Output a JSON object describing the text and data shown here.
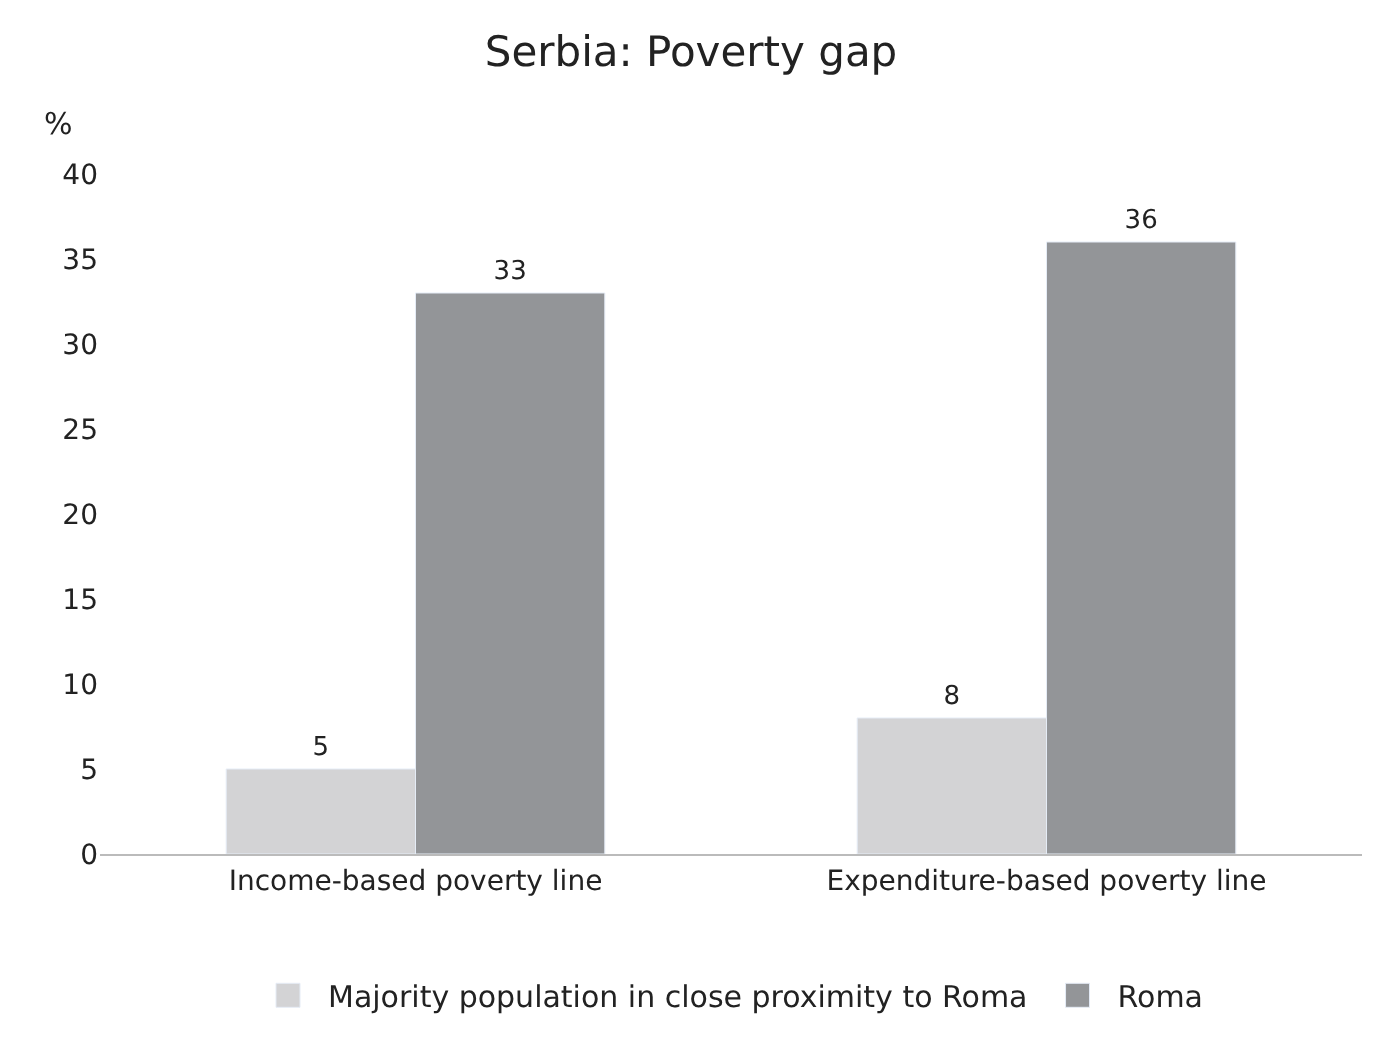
{
  "chart_data": {
    "type": "bar",
    "title": "Serbia: Poverty gap",
    "ylabel": "%",
    "categories": [
      "Income-based poverty line",
      "Expenditure-based poverty line"
    ],
    "series": [
      {
        "name": "Majority population in close proximity to Roma",
        "color": "#d3d3d5",
        "values": [
          5,
          8
        ]
      },
      {
        "name": "Roma",
        "color": "#939598",
        "values": [
          33,
          36
        ]
      }
    ],
    "ylim": [
      0,
      40
    ],
    "yticks": [
      0,
      5,
      10,
      15,
      20,
      25,
      30,
      35,
      40
    ],
    "grid": false,
    "legend": "bottom",
    "data_labels": true
  }
}
